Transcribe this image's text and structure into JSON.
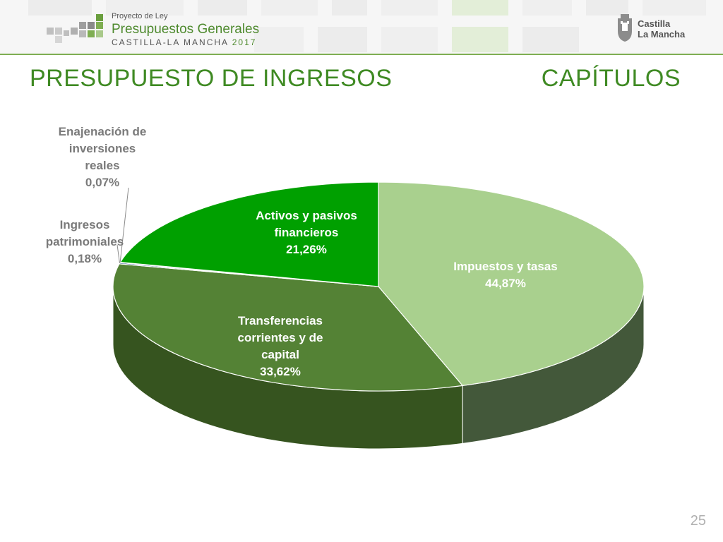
{
  "header": {
    "logo_line1": "Proyecto de Ley",
    "logo_line2": "Presupuestos Generales",
    "logo_line3": "CASTILLA-LA MANCHA",
    "logo_year": "2017",
    "region_line1": "Castilla",
    "region_line2": "La Mancha"
  },
  "slide": {
    "title": "PRESUPUESTO DE INGRESOS",
    "subtitle": "CAPÍTULOS",
    "page_number": "25"
  },
  "colors": {
    "title": "#3f8a23",
    "impuestos": "#a9d08e",
    "transferencias": "#548235",
    "patrimoniales": "#2f5597",
    "enajenacion": "#9dc3e6",
    "activos": "#00a000"
  },
  "chart_data": {
    "type": "pie",
    "style": "3d",
    "categories": [
      "Impuestos y tasas",
      "Transferencias corrientes y de capital",
      "Ingresos patrimoniales",
      "Enajenación de inversiones reales",
      "Activos y pasivos financieros"
    ],
    "values": [
      44.87,
      33.62,
      0.18,
      0.07,
      21.26
    ],
    "value_labels": [
      "44,87%",
      "33,62%",
      "0,18%",
      "0,07%",
      "21,26%"
    ],
    "label_lines": [
      [
        "Impuestos y tasas",
        "44,87%"
      ],
      [
        "Transferencias",
        "corrientes y de",
        "capital",
        "33,62%"
      ],
      [
        "Ingresos",
        "patrimoniales",
        "0,18%"
      ],
      [
        "Enajenación de",
        "inversiones",
        "reales",
        "0,07%"
      ],
      [
        "Activos y pasivos",
        "financieros",
        "21,26%"
      ]
    ]
  }
}
